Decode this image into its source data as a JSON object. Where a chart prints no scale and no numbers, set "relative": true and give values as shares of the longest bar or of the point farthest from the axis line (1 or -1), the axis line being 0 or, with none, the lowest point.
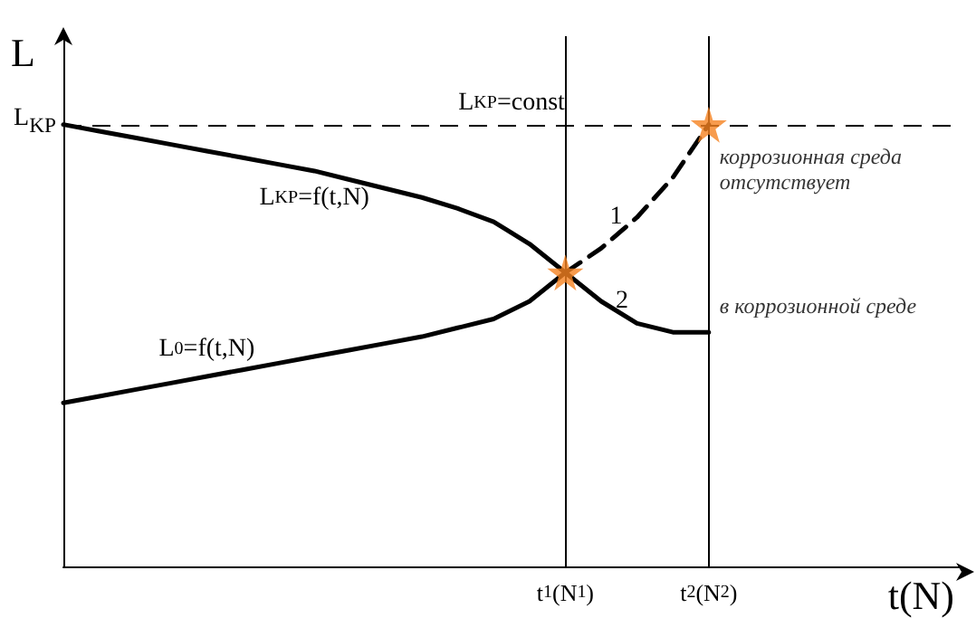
{
  "chart_data": {
    "type": "line",
    "relative": true,
    "xlabel": "t(N)",
    "ylabel": "L",
    "marker": "none",
    "categories": [
      null,
      null,
      null,
      null,
      null,
      null,
      null,
      null,
      null,
      null,
      null,
      null,
      null,
      null,
      "t$_{1}$(N$_{1}$)",
      null,
      null,
      null,
      "t$_{2}$(N$_{2}$)",
      null,
      null,
      null,
      null,
      null,
      null,
      null
    ],
    "series": [
      {
        "name": "L$_{KP}$=f(t,N)",
        "color": "#000000",
        "values": [
          1.0,
          0.985,
          0.97,
          0.955,
          0.94,
          0.925,
          0.91,
          0.895,
          0.875,
          0.855,
          0.835,
          0.81,
          0.78,
          0.73,
          0.665,
          null,
          null,
          null,
          null,
          null,
          null,
          null,
          null,
          null,
          null,
          null
        ]
      },
      {
        "name": "L$_{0}$=f(t,N)",
        "color": "#000000",
        "values": [
          0.37,
          0.385,
          0.4,
          0.415,
          0.43,
          0.445,
          0.46,
          0.475,
          0.49,
          0.505,
          0.52,
          0.54,
          0.56,
          0.6,
          0.665,
          null,
          null,
          null,
          null,
          null,
          null,
          null,
          null,
          null,
          null,
          null
        ]
      },
      {
        "name": "1",
        "color": "#000000",
        "line_style": "dashed",
        "values": [
          null,
          null,
          null,
          null,
          null,
          null,
          null,
          null,
          null,
          null,
          null,
          null,
          null,
          null,
          0.665,
          0.72,
          0.79,
          0.88,
          1.0,
          null,
          null,
          null,
          null,
          null,
          null,
          null
        ]
      },
      {
        "name": "2",
        "color": "#000000",
        "values": [
          null,
          null,
          null,
          null,
          null,
          null,
          null,
          null,
          null,
          null,
          null,
          null,
          null,
          null,
          0.665,
          0.6,
          0.55,
          0.53,
          0.53,
          null,
          null,
          null,
          null,
          null,
          null,
          null
        ]
      },
      {
        "type": "scatter",
        "marker": "star",
        "color": "#f58220",
        "values": [
          null,
          null,
          null,
          null,
          null,
          null,
          null,
          null,
          null,
          null,
          null,
          null,
          null,
          null,
          0.665,
          null,
          null,
          null,
          1.0,
          null,
          null,
          null,
          null,
          null,
          null,
          null
        ]
      }
    ],
    "ref_lines": [
      {
        "axis": "y",
        "value": 1,
        "label": "L$_{KP}$=const",
        "line_style": "dashed",
        "color": "#000000"
      },
      {
        "axis": "x",
        "value": "t$_{1}$(N$_{1}$)",
        "color": "#000000",
        "line_style": "solid"
      },
      {
        "axis": "x",
        "value": "t$_{2}$(N$_{2}$)",
        "color": "#000000",
        "line_style": "solid"
      }
    ],
    "annotations": [
      "L$_{KP}$",
      {
        "text": "коррозионная среда\nотсутствует",
        "x": "t$_{2}$(N$_{2}$)",
        "y": 0.9
      },
      {
        "text": "в коррозионной среде",
        "x": "t$_{2}$(N$_{2}$)",
        "y": 0.59
      }
    ]
  }
}
